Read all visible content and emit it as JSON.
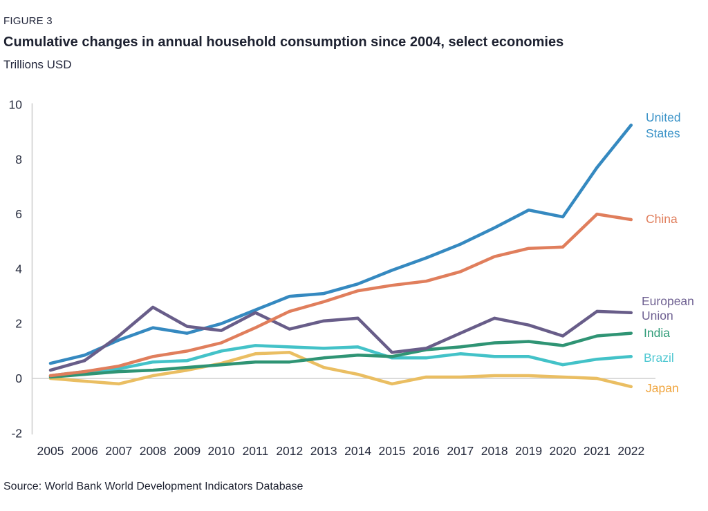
{
  "figure_label": "FIGURE 3",
  "title": "Cumulative changes in annual household consumption since 2004, select economies",
  "subtitle": "Trillions USD",
  "source": "Source: World Bank World Development Indicators Database",
  "colors": {
    "axis_gray": "#cfcfcf",
    "tick_text": "#262b3d",
    "title_text": "#1d2130"
  },
  "chart_data": {
    "type": "line",
    "title": "Cumulative changes in annual household consumption since 2004, select economies",
    "ylabel": "Trillions USD",
    "x": [
      2005,
      2006,
      2007,
      2008,
      2009,
      2010,
      2011,
      2012,
      2013,
      2014,
      2015,
      2016,
      2017,
      2018,
      2019,
      2020,
      2021,
      2022
    ],
    "ylim": [
      -2,
      10
    ],
    "yticks": [
      10,
      8,
      6,
      4,
      2,
      0,
      -2
    ],
    "grid": "zero-line-only",
    "legend_position": "right-edge-labels",
    "series": [
      {
        "name": "Brazil",
        "label_lines": [
          "Brazil"
        ],
        "color": "#43c2c8",
        "label_color": "#4fc8d2",
        "values": [
          0.1,
          0.25,
          0.35,
          0.6,
          0.65,
          1.0,
          1.2,
          1.15,
          1.1,
          1.15,
          0.75,
          0.75,
          0.9,
          0.8,
          0.8,
          0.5,
          0.7,
          0.8
        ]
      },
      {
        "name": "Japan",
        "label_lines": [
          "Japan"
        ],
        "color": "#eabe62",
        "label_color": "#f0a53e",
        "values": [
          0.0,
          -0.1,
          -0.2,
          0.1,
          0.3,
          0.55,
          0.9,
          0.95,
          0.4,
          0.15,
          -0.2,
          0.05,
          0.05,
          0.1,
          0.1,
          0.05,
          0.0,
          -0.3
        ]
      },
      {
        "name": "India",
        "label_lines": [
          "India"
        ],
        "color": "#2f9474",
        "label_color": "#2e9b77",
        "values": [
          0.05,
          0.15,
          0.25,
          0.3,
          0.4,
          0.5,
          0.6,
          0.6,
          0.75,
          0.85,
          0.8,
          1.05,
          1.15,
          1.3,
          1.35,
          1.2,
          1.55,
          1.65
        ]
      },
      {
        "name": "United States",
        "label_lines": [
          "United",
          "States"
        ],
        "color": "#3589c0",
        "label_color": "#3b93c8",
        "values": [
          0.55,
          0.85,
          1.4,
          1.85,
          1.65,
          2.0,
          2.5,
          3.0,
          3.1,
          3.45,
          3.95,
          4.4,
          4.9,
          5.5,
          6.15,
          5.9,
          7.7,
          9.25
        ]
      },
      {
        "name": "European Union",
        "label_lines": [
          "European",
          "Union"
        ],
        "color": "#685d89",
        "label_color": "#6f6192",
        "values": [
          0.3,
          0.65,
          1.55,
          2.6,
          1.9,
          1.75,
          2.4,
          1.8,
          2.1,
          2.2,
          0.95,
          1.1,
          1.65,
          2.2,
          1.95,
          1.55,
          2.45,
          2.4
        ]
      },
      {
        "name": "China",
        "label_lines": [
          "China"
        ],
        "color": "#e07e5c",
        "label_color": "#e07e5c",
        "values": [
          0.1,
          0.25,
          0.45,
          0.8,
          1.0,
          1.3,
          1.85,
          2.45,
          2.8,
          3.2,
          3.4,
          3.55,
          3.9,
          4.45,
          4.75,
          4.8,
          6.0,
          5.8
        ]
      }
    ]
  }
}
